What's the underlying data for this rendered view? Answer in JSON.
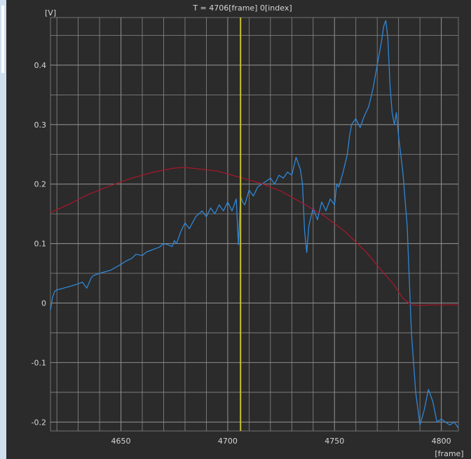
{
  "chart_data": {
    "type": "line",
    "header": "T = 4706[frame] 0[index]",
    "y_unit": "[V]",
    "x_unit": "[frame]",
    "xlim": [
      4617,
      4808
    ],
    "ylim": [
      -0.215,
      0.48
    ],
    "x_ticks": [
      {
        "value": 4650,
        "label": "4650"
      },
      {
        "value": 4700,
        "label": "4700"
      },
      {
        "value": 4750,
        "label": "4750"
      },
      {
        "value": 4800,
        "label": "4800"
      }
    ],
    "y_ticks": [
      {
        "value": 0.4,
        "label": "0.4"
      },
      {
        "value": 0.3,
        "label": "0.3"
      },
      {
        "value": 0.2,
        "label": "0.2"
      },
      {
        "value": 0.1,
        "label": "0.1"
      },
      {
        "value": 0,
        "label": "0"
      },
      {
        "value": -0.1,
        "label": "-0.1"
      },
      {
        "value": -0.2,
        "label": "-0.2"
      }
    ],
    "grid": true,
    "cursor_x": 4706,
    "colors": {
      "blue": "#2f86d6",
      "red": "#a3182b",
      "cursor": "#c8c030",
      "grid": "#8a8a8a",
      "background": "#2b2b2b"
    },
    "series": [
      {
        "color": "blue",
        "x": [
          4617,
          4618,
          4619,
          4620,
          4622,
          4625,
          4628,
          4632,
          4634,
          4636,
          4637,
          4640,
          4645,
          4650,
          4652,
          4655,
          4657,
          4660,
          4662,
          4665,
          4668,
          4670,
          4672,
          4674,
          4675,
          4676,
          4678,
          4680,
          4682,
          4685,
          4688,
          4690,
          4692,
          4694,
          4696,
          4698,
          4700,
          4702,
          4704,
          4705,
          4706,
          4707,
          4708,
          4710,
          4712,
          4714,
          4716,
          4718,
          4720,
          4722,
          4724,
          4726,
          4728,
          4730,
          4732,
          4734,
          4735,
          4736,
          4737,
          4738,
          4740,
          4742,
          4744,
          4746,
          4748,
          4750,
          4751,
          4752,
          4754,
          4756,
          4757,
          4758,
          4760,
          4762,
          4764,
          4766,
          4768,
          4770,
          4772,
          4773,
          4774,
          4775,
          4776,
          4777,
          4778,
          4779,
          4780,
          4782,
          4784,
          4786,
          4788,
          4790,
          4792,
          4794,
          4796,
          4798,
          4800,
          4802,
          4804,
          4806,
          4808
        ],
        "y": [
          -0.012,
          0.01,
          0.02,
          0.022,
          0.024,
          0.027,
          0.03,
          0.035,
          0.025,
          0.042,
          0.046,
          0.05,
          0.055,
          0.065,
          0.07,
          0.075,
          0.082,
          0.08,
          0.086,
          0.09,
          0.094,
          0.1,
          0.098,
          0.095,
          0.105,
          0.1,
          0.12,
          0.135,
          0.125,
          0.145,
          0.155,
          0.145,
          0.16,
          0.15,
          0.165,
          0.155,
          0.17,
          0.155,
          0.175,
          0.098,
          0.18,
          0.17,
          0.165,
          0.19,
          0.18,
          0.195,
          0.2,
          0.205,
          0.21,
          0.2,
          0.215,
          0.21,
          0.22,
          0.215,
          0.245,
          0.225,
          0.2,
          0.12,
          0.085,
          0.13,
          0.16,
          0.14,
          0.17,
          0.155,
          0.175,
          0.165,
          0.2,
          0.195,
          0.22,
          0.25,
          0.28,
          0.3,
          0.31,
          0.295,
          0.315,
          0.33,
          0.36,
          0.4,
          0.44,
          0.465,
          0.475,
          0.445,
          0.365,
          0.32,
          0.3,
          0.32,
          0.28,
          0.22,
          0.13,
          -0.05,
          -0.15,
          -0.205,
          -0.18,
          -0.145,
          -0.165,
          -0.2,
          -0.195,
          -0.2,
          -0.205,
          -0.2,
          -0.21
        ]
      },
      {
        "color": "red",
        "x": [
          4617,
          4625,
          4635,
          4645,
          4655,
          4665,
          4675,
          4680,
          4685,
          4695,
          4705,
          4715,
          4725,
          4735,
          4745,
          4755,
          4765,
          4772,
          4778,
          4782,
          4786,
          4790,
          4795,
          4800,
          4805,
          4808
        ],
        "y": [
          0.152,
          0.165,
          0.183,
          0.197,
          0.21,
          0.22,
          0.227,
          0.228,
          0.226,
          0.222,
          0.212,
          0.202,
          0.188,
          0.168,
          0.147,
          0.12,
          0.085,
          0.055,
          0.03,
          0.008,
          -0.003,
          -0.004,
          -0.003,
          -0.003,
          -0.003,
          -0.003
        ]
      }
    ]
  }
}
